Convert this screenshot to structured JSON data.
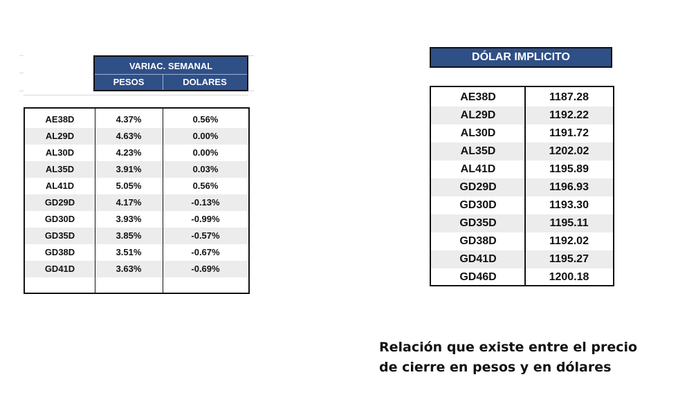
{
  "weekly_table": {
    "header": "VARIAC. SEMANAL",
    "col_pesos": "PESOS",
    "col_dolares": "DOLARES",
    "rows": [
      {
        "bond": "AE38D",
        "pesos": "4.37%",
        "dolares": "0.56%"
      },
      {
        "bond": "AL29D",
        "pesos": "4.63%",
        "dolares": "0.00%"
      },
      {
        "bond": "AL30D",
        "pesos": "4.23%",
        "dolares": "0.00%"
      },
      {
        "bond": "AL35D",
        "pesos": "3.91%",
        "dolares": "0.03%"
      },
      {
        "bond": "AL41D",
        "pesos": "5.05%",
        "dolares": "0.56%"
      },
      {
        "bond": "GD29D",
        "pesos": "4.17%",
        "dolares": "-0.13%"
      },
      {
        "bond": "GD30D",
        "pesos": "3.93%",
        "dolares": "-0.99%"
      },
      {
        "bond": "GD35D",
        "pesos": "3.85%",
        "dolares": "-0.57%"
      },
      {
        "bond": "GD38D",
        "pesos": "3.51%",
        "dolares": "-0.67%"
      },
      {
        "bond": "GD41D",
        "pesos": "3.63%",
        "dolares": "-0.69%"
      }
    ]
  },
  "implicit_table": {
    "header": "DÓLAR IMPLICITO",
    "rows": [
      {
        "bond": "AE38D",
        "value": "1187.28"
      },
      {
        "bond": "AL29D",
        "value": "1192.22"
      },
      {
        "bond": "AL30D",
        "value": "1191.72"
      },
      {
        "bond": "AL35D",
        "value": "1202.02"
      },
      {
        "bond": "AL41D",
        "value": "1195.89"
      },
      {
        "bond": "GD29D",
        "value": "1196.93"
      },
      {
        "bond": "GD30D",
        "value": "1193.30"
      },
      {
        "bond": "GD35D",
        "value": "1195.11"
      },
      {
        "bond": "GD38D",
        "value": "1192.02"
      },
      {
        "bond": "GD41D",
        "value": "1195.27"
      },
      {
        "bond": "GD46D",
        "value": "1200.18"
      }
    ]
  },
  "caption": {
    "line1": "Relación que existe entre el precio",
    "line2": "de cierre en pesos y en dólares"
  },
  "colors": {
    "header_bg": "#2f4f87",
    "header_text": "#ffffff",
    "stripe": "#ececec",
    "border": "#111111"
  }
}
